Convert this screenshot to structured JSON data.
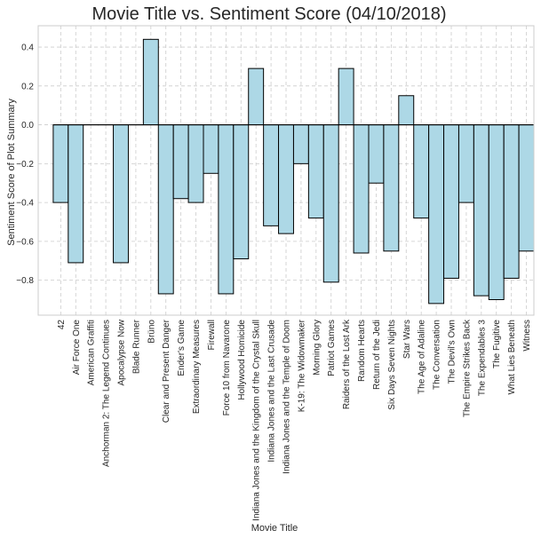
{
  "chart_data": {
    "type": "bar",
    "title": "Movie Title vs. Sentiment Score (04/10/2018)",
    "xlabel": "Movie Title",
    "ylabel": "Sentiment Score of Plot Summary",
    "ylim": [
      -0.98,
      0.51
    ],
    "yticks": [
      -0.8,
      -0.6,
      -0.4,
      -0.2,
      0.0,
      0.2,
      0.4
    ],
    "ytick_labels": [
      "−0.8",
      "−0.6",
      "−0.4",
      "−0.2",
      "0.0",
      "0.2",
      "0.4"
    ],
    "grid": true,
    "bar_color": "#add8e6",
    "edge_color": "#000000",
    "categories": [
      "42",
      "Air Force One",
      "American Graffiti",
      "Anchorman 2: The Legend Continues",
      "Apocalypse Now",
      "Blade Runner",
      "Brüno",
      "Clear and Present Danger",
      "Ender's Game",
      "Extraordinary Measures",
      "Firewall",
      "Force 10 from Navarone",
      "Hollywood Homicide",
      "Indiana Jones and the Kingdom of the Crystal Skull",
      "Indiana Jones and the Last Crusade",
      "Indiana Jones and the Temple of Doom",
      "K-19: The Widowmaker",
      "Morning Glory",
      "Patriot Games",
      "Raiders of the Lost Ark",
      "Random Hearts",
      "Return of the Jedi",
      "Six Days Seven Nights",
      "Star Wars",
      "The Age of Adaline",
      "The Conversation",
      "The Devil's Own",
      "The Empire Strikes Back",
      "The Expendables 3",
      "The Fugitive",
      "What Lies Beneath",
      "Witness"
    ],
    "values": [
      -0.4,
      -0.71,
      0.0,
      0.0,
      -0.71,
      0.0,
      0.44,
      -0.87,
      -0.38,
      -0.4,
      -0.25,
      -0.87,
      -0.69,
      0.29,
      -0.52,
      -0.56,
      -0.2,
      -0.48,
      -0.81,
      0.29,
      -0.66,
      -0.3,
      -0.65,
      0.15,
      -0.48,
      -0.92,
      -0.79,
      -0.4,
      -0.88,
      -0.9,
      -0.79,
      -0.65
    ]
  }
}
